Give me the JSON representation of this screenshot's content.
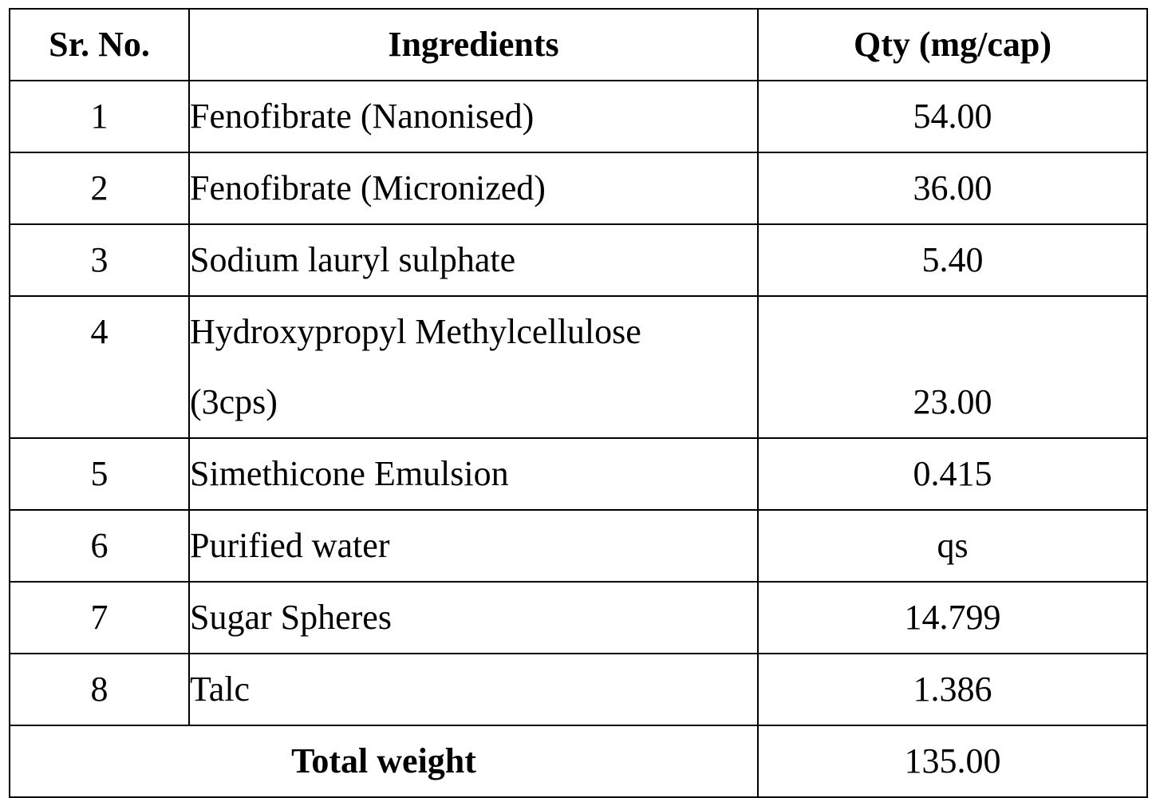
{
  "table": {
    "headers": {
      "sr_no": "Sr. No.",
      "ingredients": "Ingredients",
      "qty": "Qty (mg/cap)"
    },
    "rows": [
      {
        "sr_no": "1",
        "ingredient": "Fenofibrate (Nanonised)",
        "qty": "54.00"
      },
      {
        "sr_no": "2",
        "ingredient": "Fenofibrate (Micronized)",
        "qty": "36.00"
      },
      {
        "sr_no": "3",
        "ingredient": "Sodium lauryl sulphate",
        "qty": "5.40"
      },
      {
        "sr_no": "4",
        "ingredient_line1": "Hydroxypropyl Methylcellulose",
        "ingredient_line2": "(3cps)",
        "qty": "23.00"
      },
      {
        "sr_no": "5",
        "ingredient": "Simethicone Emulsion",
        "qty": "0.415"
      },
      {
        "sr_no": "6",
        "ingredient": "Purified water",
        "qty": "qs"
      },
      {
        "sr_no": "7",
        "ingredient": "Sugar Spheres",
        "qty": "14.799"
      },
      {
        "sr_no": "8",
        "ingredient": "Talc",
        "qty": "1.386"
      }
    ],
    "total": {
      "label": "Total weight",
      "qty": "135.00"
    }
  }
}
